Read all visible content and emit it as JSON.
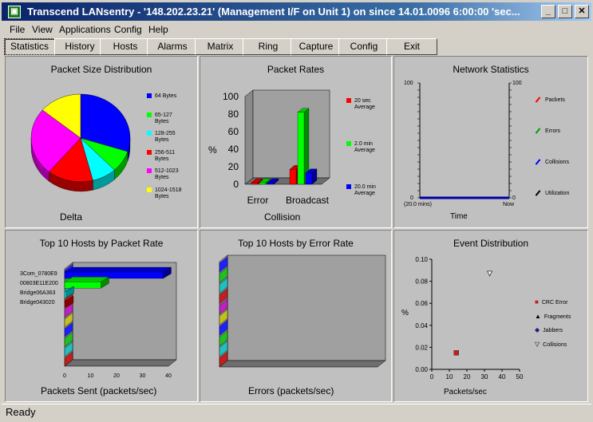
{
  "window": {
    "title": "Transcend LANsentry - '148.202.23.21' (Management I/F on Unit 1) on since 14.01.0096 6:00:00 'sec...",
    "min": "_",
    "max": "□",
    "close": "✕",
    "icon": "app-icon"
  },
  "menu": [
    "File",
    "View",
    "Applications",
    "Config",
    "Help"
  ],
  "tabs": [
    "Statistics",
    "History",
    "Hosts",
    "Alarms",
    "Matrix",
    "Ring",
    "Capture",
    "Config",
    "Exit"
  ],
  "panels": {
    "packet_size": {
      "title": "Packet Size Distribution",
      "footer": "Delta",
      "legend": [
        {
          "l1": "64 Bytes",
          "l2": "",
          "color": "#0000ff"
        },
        {
          "l1": "65-127",
          "l2": "Bytes",
          "color": "#00ff00"
        },
        {
          "l1": "128-255",
          "l2": "Bytes",
          "color": "#00ffff"
        },
        {
          "l1": "256-511",
          "l2": "Bytes",
          "color": "#ff0000"
        },
        {
          "l1": "512-1023",
          "l2": "Bytes",
          "color": "#ff00ff"
        },
        {
          "l1": "1024-1518",
          "l2": "Bytes",
          "color": "#ffff00"
        }
      ]
    },
    "packet_rates": {
      "title": "Packet Rates",
      "ylabel": "%",
      "xlabel": "Collision",
      "yticks": [
        "100",
        "80",
        "60",
        "40",
        "20",
        "0"
      ],
      "cats": [
        "Error",
        "Broadcast"
      ],
      "legend": [
        {
          "l1": "20 sec",
          "l2": "Average",
          "color": "#ff0000"
        },
        {
          "l1": "2.0 min",
          "l2": "Average",
          "color": "#00ff00"
        },
        {
          "l1": "20.0 min",
          "l2": "Average",
          "color": "#0000ff"
        }
      ]
    },
    "network": {
      "title": "Network Statistics",
      "xlabel": "Time",
      "left_top": "100",
      "left_bot": "0",
      "right_top": "100",
      "right_bot": "0",
      "x_left": "(20.0 mins)",
      "x_right": "Now",
      "legend": [
        {
          "l1": "Packets",
          "color": "#ff0000"
        },
        {
          "l1": "Errors",
          "color": "#00a000"
        },
        {
          "l1": "Collisions",
          "color": "#0000ff"
        },
        {
          "l1": "Utilization",
          "color": "#000000"
        }
      ]
    },
    "top_rate": {
      "title": "Top 10 Hosts by Packet Rate",
      "xlabel": "Packets Sent (packets/sec)",
      "hosts": [
        "3Com_0780E9",
        "00803E11E200",
        "Bridge06A363",
        "Bridge043020"
      ],
      "xticks": [
        "0",
        "10",
        "20",
        "30",
        "40"
      ]
    },
    "top_err": {
      "title": "Top 10 Hosts by Error Rate",
      "xlabel": "Errors (packets/sec)"
    },
    "event": {
      "title": "Event Distribution",
      "ylabel": "%",
      "xlabel": "Packets/sec",
      "yticks": [
        "0.10",
        "0.08",
        "0.06",
        "0.04",
        "0.02",
        "0.00"
      ],
      "xticks": [
        "0",
        "10",
        "20",
        "30",
        "40",
        "50"
      ],
      "legend": [
        {
          "l1": "CRC Error",
          "sym": "■"
        },
        {
          "l1": "Fragments",
          "sym": "▲"
        },
        {
          "l1": "Jabbers",
          "sym": "◆"
        },
        {
          "l1": "Collisions",
          "sym": "▽"
        }
      ]
    }
  },
  "chart_data": [
    {
      "type": "pie",
      "title": "Packet Size Distribution",
      "categories": [
        "64 Bytes",
        "65-127 Bytes",
        "128-255 Bytes",
        "256-511 Bytes",
        "512-1023 Bytes",
        "1024-1518 Bytes"
      ],
      "values": [
        30,
        8,
        8,
        15,
        25,
        14
      ]
    },
    {
      "type": "bar",
      "title": "Packet Rates",
      "categories": [
        "Error",
        "Broadcast"
      ],
      "series": [
        {
          "name": "20 sec Average",
          "values": [
            1,
            17
          ]
        },
        {
          "name": "2.0 min Average",
          "values": [
            1,
            82
          ]
        },
        {
          "name": "20.0 min Average",
          "values": [
            1,
            13
          ]
        }
      ],
      "ylabel": "%",
      "ylim": [
        0,
        100
      ]
    },
    {
      "type": "bar",
      "title": "Top 10 Hosts by Packet Rate",
      "categories": [
        "3Com_0780E9",
        "00803E11E200",
        "Bridge06A363",
        "Bridge043020"
      ],
      "values": [
        38,
        14,
        0.5,
        0.3
      ],
      "xlim": [
        0,
        40
      ]
    },
    {
      "type": "scatter",
      "title": "Event Distribution",
      "series": [
        {
          "name": "CRC Error",
          "x": [
            14
          ],
          "y": [
            0.015
          ]
        },
        {
          "name": "Collisions",
          "x": [
            33
          ],
          "y": [
            0.087
          ]
        }
      ],
      "xlim": [
        0,
        50
      ],
      "ylim": [
        0,
        0.1
      ]
    }
  ],
  "status": "Ready"
}
